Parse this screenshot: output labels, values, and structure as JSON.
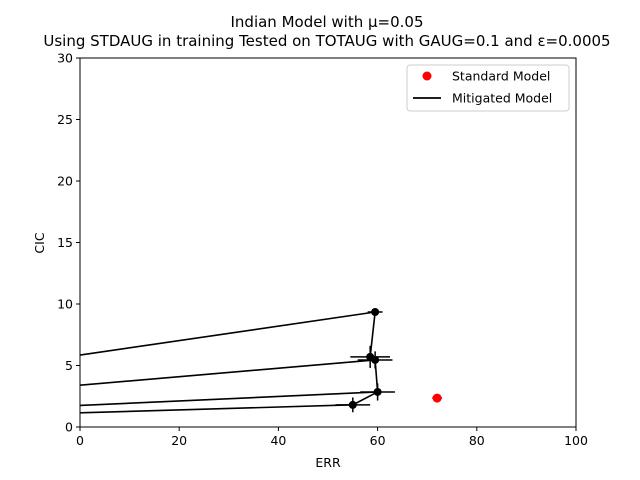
{
  "chart_data": {
    "type": "line",
    "title": "Indian Model with μ=0.05",
    "subtitle": "Using STDAUG in training Tested on TOTAUG with GAUG=0.1 and ε=0.0005",
    "xlabel": "ERR",
    "ylabel": "CIC",
    "xlim": [
      0,
      100
    ],
    "ylim": [
      0,
      30
    ],
    "x_ticks": [
      "0",
      "20",
      "40",
      "60",
      "80",
      "100"
    ],
    "y_ticks": [
      "0",
      "5",
      "10",
      "15",
      "20",
      "25",
      "30"
    ],
    "grid": false,
    "legend_position": "top-right",
    "legend": [
      "Standard Model",
      "Mitigated Model"
    ],
    "standard_model": {
      "x": 72.0,
      "y": 2.35,
      "xerr": 1.0,
      "yerr": 0.15,
      "color": "#ff0000"
    },
    "mitigated_points": [
      {
        "x": 59.5,
        "y": 9.35,
        "xerr": 1.5,
        "yerr": 0.2
      },
      {
        "x": 58.5,
        "y": 5.7,
        "xerr": 4.0,
        "yerr": 0.9
      },
      {
        "x": 59.5,
        "y": 5.45,
        "xerr": 3.5,
        "yerr": 0.7
      },
      {
        "x": 60.0,
        "y": 2.85,
        "xerr": 3.5,
        "yerr": 0.7
      },
      {
        "x": 55.0,
        "y": 1.8,
        "xerr": 3.5,
        "yerr": 0.6
      }
    ],
    "mitigated_path_order": [
      0,
      1,
      2,
      3,
      4
    ],
    "mitigated_lines": [
      {
        "from": [
          0,
          5.85
        ],
        "to": [
          59.5,
          9.35
        ]
      },
      {
        "from": [
          0,
          3.4
        ],
        "to": [
          59.5,
          5.45
        ]
      },
      {
        "from": [
          0,
          1.75
        ],
        "to": [
          60.0,
          2.85
        ]
      },
      {
        "from": [
          0,
          1.15
        ],
        "to": [
          55.0,
          1.8
        ]
      }
    ],
    "mitigated_color": "#000000"
  }
}
